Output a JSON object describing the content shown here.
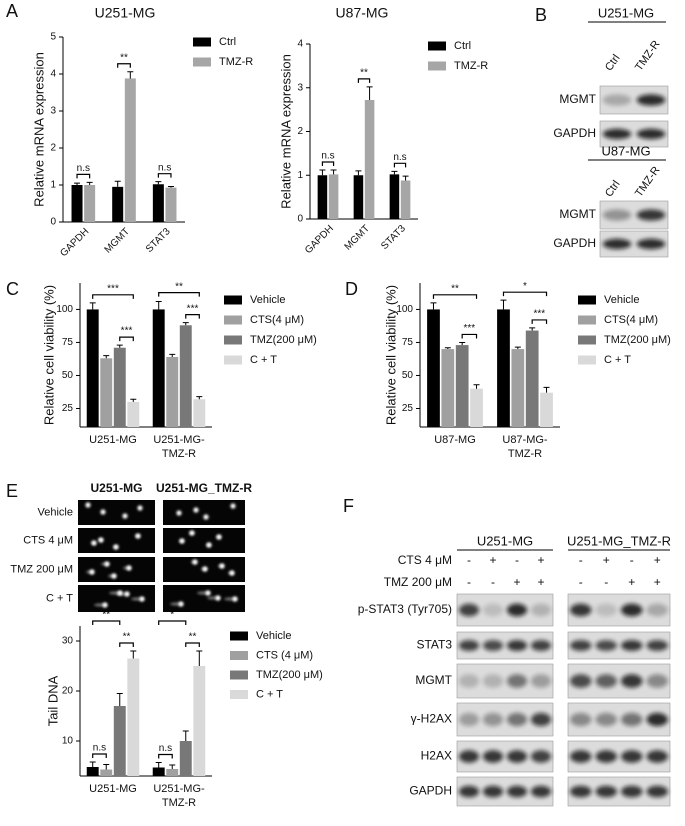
{
  "panel_labels": {
    "a": "A",
    "b": "B",
    "c": "C",
    "d": "D",
    "e": "E",
    "f": "F"
  },
  "chart_data": [
    {
      "type": "bar",
      "title": "U251-MG",
      "y_label": "Relative mRNA expression",
      "categories": [
        "GAPDH",
        "MGMT",
        "STAT3"
      ],
      "series": [
        {
          "name": "Ctrl",
          "color": "#000000",
          "values": [
            1.0,
            0.95,
            1.02
          ],
          "errors": [
            0.05,
            0.15,
            0.07
          ]
        },
        {
          "name": "TMZ-R",
          "color": "#a6a6a6",
          "values": [
            1.0,
            3.88,
            0.93
          ],
          "errors": [
            0.07,
            0.18,
            0.03
          ]
        }
      ],
      "ylim": [
        0,
        5
      ],
      "yticks": [
        0,
        1,
        2,
        3,
        4,
        5
      ],
      "annotations": [
        {
          "text": "n.s",
          "category": 0,
          "between": [
            "Ctrl",
            "TMZ-R"
          ]
        },
        {
          "text": "**",
          "category": 1,
          "between": [
            "Ctrl",
            "TMZ-R"
          ]
        },
        {
          "text": "n.s",
          "category": 2,
          "between": [
            "Ctrl",
            "TMZ-R"
          ]
        }
      ]
    },
    {
      "type": "bar",
      "title": "U87-MG",
      "y_label": "Relative mRNA expression",
      "categories": [
        "GAPDH",
        "MGMT",
        "STAT3"
      ],
      "series": [
        {
          "name": "Ctrl",
          "color": "#000000",
          "values": [
            1.0,
            1.0,
            1.02
          ],
          "errors": [
            0.12,
            0.1,
            0.07
          ]
        },
        {
          "name": "TMZ-R",
          "color": "#a6a6a6",
          "values": [
            1.02,
            2.72,
            0.88
          ],
          "errors": [
            0.1,
            0.3,
            0.1
          ]
        }
      ],
      "ylim": [
        0,
        4
      ],
      "yticks": [
        0,
        1,
        2,
        3,
        4
      ],
      "annotations": [
        {
          "text": "n.s",
          "category": 0,
          "between": [
            "Ctrl",
            "TMZ-R"
          ]
        },
        {
          "text": "**",
          "category": 1,
          "between": [
            "Ctrl",
            "TMZ-R"
          ]
        },
        {
          "text": "n.s",
          "category": 2,
          "between": [
            "Ctrl",
            "TMZ-R"
          ]
        }
      ]
    },
    {
      "type": "bar",
      "y_label": "Relative cell viability (%)",
      "categories": [
        "U251-MG",
        "U251-MG-\nTMZ-R"
      ],
      "series": [
        {
          "name": "Vehicle",
          "color": "#000000",
          "values": [
            100,
            100
          ],
          "errors": [
            5,
            6
          ]
        },
        {
          "name": "CTS(4 μM)",
          "color": "#a0a0a0",
          "values": [
            63,
            64
          ],
          "errors": [
            2,
            2
          ]
        },
        {
          "name": "TMZ(200 μM)",
          "color": "#787878",
          "values": [
            71,
            88
          ],
          "errors": [
            2,
            2
          ]
        },
        {
          "name": "C + T",
          "color": "#d9d9d9",
          "values": [
            30,
            32
          ],
          "errors": [
            2,
            2
          ]
        }
      ],
      "ylim": [
        11,
        120
      ],
      "yticks": [
        25,
        50,
        75,
        100
      ],
      "annotations": [
        {
          "text": "***",
          "category": 0,
          "between": [
            "TMZ(200 μM)",
            "C + T"
          ]
        },
        {
          "text": "***",
          "category": 0,
          "between": [
            "Vehicle",
            "C + T"
          ]
        },
        {
          "text": "***",
          "category": 1,
          "between": [
            "TMZ(200 μM)",
            "C + T"
          ]
        },
        {
          "text": "**",
          "category": 1,
          "between": [
            "Vehicle",
            "C + T"
          ]
        }
      ]
    },
    {
      "type": "bar",
      "y_label": "Relative cell viability (%)",
      "categories": [
        "U87-MG",
        "U87-MG-\nTMZ-R"
      ],
      "series": [
        {
          "name": "Vehicle",
          "color": "#000000",
          "values": [
            100,
            100
          ],
          "errors": [
            5,
            7
          ]
        },
        {
          "name": "CTS(4 μM)",
          "color": "#a0a0a0",
          "values": [
            70,
            70
          ],
          "errors": [
            1,
            1.5
          ]
        },
        {
          "name": "TMZ(200 μM)",
          "color": "#787878",
          "values": [
            73,
            84
          ],
          "errors": [
            2,
            2
          ]
        },
        {
          "name": "C + T",
          "color": "#d9d9d9",
          "values": [
            40,
            37
          ],
          "errors": [
            3,
            4
          ]
        }
      ],
      "ylim": [
        11,
        120
      ],
      "yticks": [
        25,
        50,
        75,
        100
      ],
      "annotations": [
        {
          "text": "***",
          "category": 0,
          "between": [
            "TMZ(200 μM)",
            "C + T"
          ]
        },
        {
          "text": "**",
          "category": 0,
          "between": [
            "Vehicle",
            "C + T"
          ]
        },
        {
          "text": "***",
          "category": 1,
          "between": [
            "TMZ(200 μM)",
            "C + T"
          ]
        },
        {
          "text": "*",
          "category": 1,
          "between": [
            "Vehicle",
            "C + T"
          ]
        }
      ]
    },
    {
      "type": "bar",
      "y_label": "Tail DNA",
      "categories": [
        "U251-MG",
        "U251-MG-\nTMZ-R"
      ],
      "series": [
        {
          "name": "Vehicle",
          "color": "#000000",
          "values": [
            4.8,
            4.7
          ],
          "errors": [
            1,
            1
          ]
        },
        {
          "name": "CTS (4 μM)",
          "color": "#a0a0a0",
          "values": [
            4.3,
            4.4
          ],
          "errors": [
            1,
            0.8
          ]
        },
        {
          "name": "TMZ(200 μM)",
          "color": "#787878",
          "values": [
            17,
            10
          ],
          "errors": [
            2.5,
            2
          ]
        },
        {
          "name": "C + T",
          "color": "#d9d9d9",
          "values": [
            26.5,
            25
          ],
          "errors": [
            1.5,
            3
          ]
        }
      ],
      "ylim": [
        3,
        33
      ],
      "yticks": [
        10,
        20,
        30
      ],
      "annotations": [
        {
          "text": "n.s",
          "category": 0,
          "between": [
            "Vehicle",
            "CTS (4 μM)"
          ]
        },
        {
          "text": "**",
          "category": 0,
          "between": [
            "Vehicle",
            "TMZ(200 μM)"
          ]
        },
        {
          "text": "**",
          "category": 0,
          "between": [
            "TMZ(200 μM)",
            "C + T"
          ]
        },
        {
          "text": "n.s",
          "category": 1,
          "between": [
            "Vehicle",
            "CTS (4 μM)"
          ]
        },
        {
          "text": "*",
          "category": 1,
          "between": [
            "Vehicle",
            "TMZ(200 μM)"
          ]
        },
        {
          "text": "**",
          "category": 1,
          "between": [
            "TMZ(200 μM)",
            "C + T"
          ]
        }
      ]
    }
  ],
  "blot_b": [
    {
      "title": "U251-MG",
      "columns": [
        "Ctrl",
        "TMZ-R"
      ],
      "rows": [
        "MGMT",
        "GAPDH"
      ]
    },
    {
      "title": "U87-MG",
      "columns": [
        "Ctrl",
        "TMZ-R"
      ],
      "rows": [
        "MGMT",
        "GAPDH"
      ]
    }
  ],
  "comet_e": {
    "columns": [
      "U251-MG",
      "U251-MG_TMZ-R"
    ],
    "rows": [
      "Vehicle",
      "CTS 4 μM",
      "TMZ 200 μM",
      "C + T"
    ]
  },
  "blot_f": {
    "groups": [
      "U251-MG",
      "U251-MG_TMZ-R"
    ],
    "treatments": [
      {
        "name": "CTS 4 μM",
        "signs": [
          "-",
          "+",
          "-",
          "+",
          "-",
          "+",
          "-",
          "+"
        ]
      },
      {
        "name": "TMZ 200 μM",
        "signs": [
          "-",
          "-",
          "+",
          "+",
          "-",
          "-",
          "+",
          "+"
        ]
      }
    ],
    "rows": [
      "p-STAT3 (Tyr705)",
      "STAT3",
      "MGMT",
      "γ-H2AX",
      "H2AX",
      "GAPDH"
    ]
  }
}
